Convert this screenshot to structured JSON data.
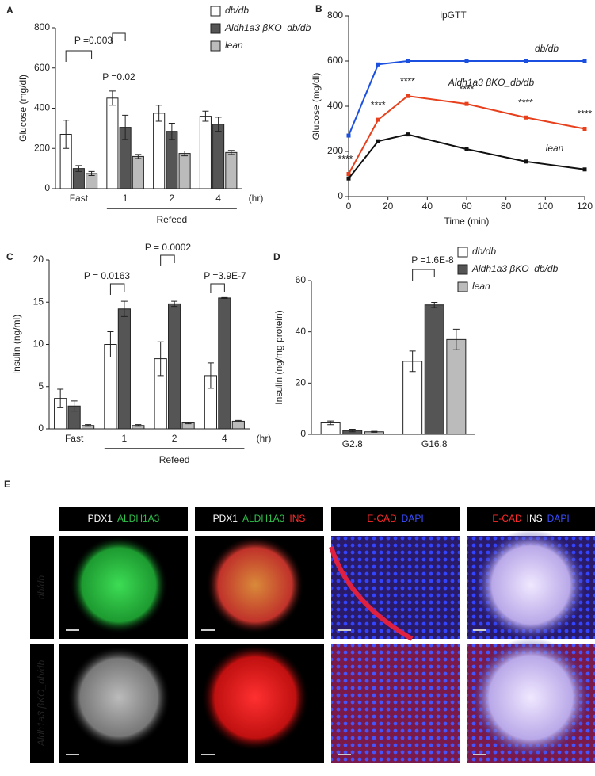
{
  "chart_data": [
    {
      "type": "bar",
      "panel": "A",
      "ylabel": "Glucose (mg/dl)",
      "xlabel": "Refeed",
      "x_unit": "(hr)",
      "categories": [
        "Fast",
        "1",
        "2",
        "4"
      ],
      "series": [
        {
          "name": "db/db",
          "color": "#ffffff",
          "values": [
            270,
            450,
            375,
            360
          ],
          "errors": [
            70,
            35,
            40,
            25
          ]
        },
        {
          "name": "Aldh1a3 βKO_db/db",
          "color": "#555555",
          "values": [
            100,
            305,
            285,
            320
          ],
          "errors": [
            15,
            60,
            40,
            35
          ]
        },
        {
          "name": "lean",
          "color": "#bbbbbb",
          "values": [
            75,
            160,
            175,
            180
          ],
          "errors": [
            10,
            10,
            12,
            10
          ]
        }
      ],
      "ylim": [
        0,
        800
      ],
      "yticks": [
        0,
        200,
        400,
        600,
        800
      ],
      "annotations": [
        "P =0.003",
        "P =0.02"
      ]
    },
    {
      "type": "line",
      "panel": "B",
      "title": "ipGTT",
      "xlabel": "Time (min)",
      "ylabel": "Glucose (mg/dl)",
      "x": [
        0,
        15,
        30,
        60,
        90,
        120
      ],
      "series": [
        {
          "name": "db/db",
          "color": "#1a4fe0",
          "values": [
            270,
            585,
            600,
            600,
            600,
            600
          ]
        },
        {
          "name": "Aldh1a3 βKO_db/db",
          "color": "#e8401c",
          "values": [
            100,
            340,
            445,
            410,
            350,
            300
          ],
          "value_labels": [
            "****",
            "****",
            "****",
            "****",
            "****",
            "****"
          ]
        },
        {
          "name": "lean",
          "color": "#111111",
          "values": [
            80,
            245,
            275,
            210,
            155,
            120
          ]
        }
      ],
      "xlim": [
        0,
        120
      ],
      "xticks": [
        0,
        20,
        40,
        60,
        80,
        100,
        120
      ],
      "ylim": [
        0,
        800
      ],
      "yticks": [
        0,
        200,
        400,
        600,
        800
      ]
    },
    {
      "type": "bar",
      "panel": "C",
      "ylabel": "Insulin (ng/ml)",
      "xlabel": "Refeed",
      "x_unit": "(hr)",
      "categories": [
        "Fast",
        "1",
        "2",
        "4"
      ],
      "series": [
        {
          "name": "db/db",
          "color": "#ffffff",
          "values": [
            3.6,
            10,
            8.3,
            6.3
          ],
          "errors": [
            1.1,
            1.5,
            2.0,
            1.5
          ]
        },
        {
          "name": "Aldh1a3 βKO_db/db",
          "color": "#555555",
          "values": [
            2.7,
            14.2,
            14.8,
            15.5
          ],
          "errors": [
            0.6,
            0.9,
            0.3,
            0.05
          ]
        },
        {
          "name": "lean",
          "color": "#bbbbbb",
          "values": [
            0.4,
            0.4,
            0.7,
            0.9
          ],
          "errors": [
            0.1,
            0.1,
            0.1,
            0.1
          ]
        }
      ],
      "ylim": [
        0,
        20
      ],
      "yticks": [
        0,
        5,
        10,
        15,
        20
      ],
      "annotations": [
        "P = 0.0163",
        "P = 0.0002",
        "P =3.9E-7"
      ]
    },
    {
      "type": "bar",
      "panel": "D",
      "ylabel": "Insulin (ng/mg protein)",
      "categories": [
        "G2.8",
        "G16.8"
      ],
      "series": [
        {
          "name": "db/db",
          "color": "#ffffff",
          "values": [
            4.5,
            28.5
          ],
          "errors": [
            0.7,
            4
          ]
        },
        {
          "name": "Aldh1a3 βKO_db/db",
          "color": "#555555",
          "values": [
            1.5,
            50.5
          ],
          "errors": [
            0.5,
            1
          ]
        },
        {
          "name": "lean",
          "color": "#bbbbbb",
          "values": [
            1,
            37
          ],
          "errors": [
            0.2,
            4
          ]
        }
      ],
      "ylim": [
        0,
        60
      ],
      "yticks": [
        0,
        20,
        40,
        60
      ],
      "annotations": [
        "P =1.6E-8"
      ]
    }
  ],
  "panel_e": {
    "label": "E",
    "columns": [
      [
        {
          "text": "PDX1",
          "color": "#ffffff"
        },
        {
          "text": "ALDH1A3",
          "color": "#2fbf4a"
        }
      ],
      [
        {
          "text": "PDX1",
          "color": "#ffffff"
        },
        {
          "text": "ALDH1A3",
          "color": "#2fbf4a"
        },
        {
          "text": "INS",
          "color": "#ff2a2a"
        }
      ],
      [
        {
          "text": "E-CAD",
          "color": "#ff2a2a"
        },
        {
          "text": "DAPI",
          "color": "#3a4dff"
        }
      ],
      [
        {
          "text": "E-CAD",
          "color": "#ff2a2a"
        },
        {
          "text": "INS",
          "color": "#ffffff"
        },
        {
          "text": "DAPI",
          "color": "#3a4dff"
        }
      ]
    ],
    "rows": [
      "db/db",
      "Aldh1a3 βKO_db/db"
    ]
  }
}
